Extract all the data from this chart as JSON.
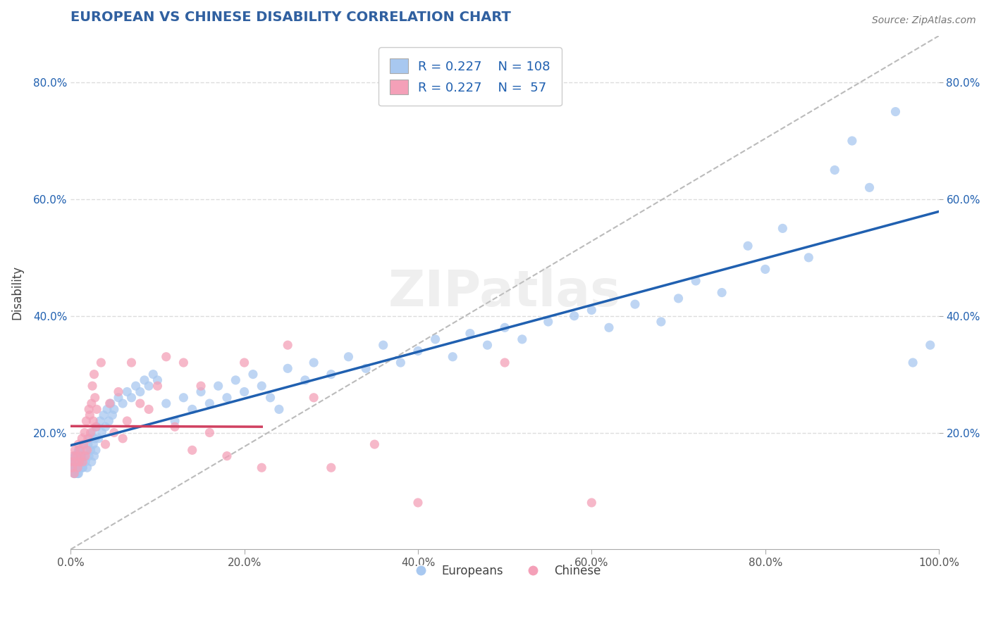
{
  "title": "EUROPEAN VS CHINESE DISABILITY CORRELATION CHART",
  "source": "Source: ZipAtlas.com",
  "ylabel": "Disability",
  "xlabel": "",
  "xlim": [
    0.0,
    1.0
  ],
  "ylim": [
    0.0,
    0.88
  ],
  "xtick_labels": [
    "0.0%",
    "20.0%",
    "40.0%",
    "60.0%",
    "80.0%",
    "100.0%"
  ],
  "xtick_vals": [
    0.0,
    0.2,
    0.4,
    0.6,
    0.8,
    1.0
  ],
  "ytick_labels": [
    "20.0%",
    "40.0%",
    "60.0%",
    "80.0%"
  ],
  "ytick_vals": [
    0.2,
    0.4,
    0.6,
    0.8
  ],
  "R_european": 0.227,
  "N_european": 108,
  "R_chinese": 0.227,
  "N_chinese": 57,
  "blue_scatter": "#a8c8f0",
  "pink_scatter": "#f4a0b8",
  "blue_line_color": "#2060b0",
  "pink_line_color": "#d04060",
  "diag_color": "#bbbbbb",
  "grid_color": "#dddddd",
  "title_color": "#3060a0",
  "legend_text_color": "#2060b0",
  "background_color": "#ffffff",
  "europeans_scatter_x": [
    0.003,
    0.004,
    0.005,
    0.006,
    0.007,
    0.008,
    0.009,
    0.01,
    0.011,
    0.012,
    0.013,
    0.014,
    0.015,
    0.016,
    0.017,
    0.018,
    0.019,
    0.02,
    0.021,
    0.022,
    0.023,
    0.024,
    0.025,
    0.026,
    0.027,
    0.028,
    0.029,
    0.03,
    0.032,
    0.034,
    0.036,
    0.038,
    0.04,
    0.042,
    0.044,
    0.046,
    0.048,
    0.05,
    0.055,
    0.06,
    0.065,
    0.07,
    0.075,
    0.08,
    0.085,
    0.09,
    0.095,
    0.1,
    0.11,
    0.12,
    0.13,
    0.14,
    0.15,
    0.16,
    0.17,
    0.18,
    0.19,
    0.2,
    0.21,
    0.22,
    0.23,
    0.24,
    0.25,
    0.27,
    0.28,
    0.3,
    0.32,
    0.34,
    0.36,
    0.38,
    0.4,
    0.42,
    0.44,
    0.46,
    0.48,
    0.5,
    0.52,
    0.55,
    0.58,
    0.6,
    0.62,
    0.65,
    0.68,
    0.7,
    0.72,
    0.75,
    0.78,
    0.8,
    0.82,
    0.85,
    0.88,
    0.9,
    0.92,
    0.95,
    0.97,
    0.99,
    0.002,
    0.003,
    0.004,
    0.005,
    0.006,
    0.007,
    0.008,
    0.009,
    0.01,
    0.011,
    0.012,
    0.013
  ],
  "europeans_scatter_y": [
    0.14,
    0.15,
    0.13,
    0.16,
    0.14,
    0.15,
    0.13,
    0.17,
    0.14,
    0.16,
    0.15,
    0.14,
    0.18,
    0.16,
    0.15,
    0.17,
    0.14,
    0.18,
    0.16,
    0.19,
    0.17,
    0.15,
    0.2,
    0.18,
    0.16,
    0.19,
    0.17,
    0.21,
    0.19,
    0.22,
    0.2,
    0.23,
    0.21,
    0.24,
    0.22,
    0.25,
    0.23,
    0.24,
    0.26,
    0.25,
    0.27,
    0.26,
    0.28,
    0.27,
    0.29,
    0.28,
    0.3,
    0.29,
    0.25,
    0.22,
    0.26,
    0.24,
    0.27,
    0.25,
    0.28,
    0.26,
    0.29,
    0.27,
    0.3,
    0.28,
    0.26,
    0.24,
    0.31,
    0.29,
    0.32,
    0.3,
    0.33,
    0.31,
    0.35,
    0.32,
    0.34,
    0.36,
    0.33,
    0.37,
    0.35,
    0.38,
    0.36,
    0.39,
    0.4,
    0.41,
    0.38,
    0.42,
    0.39,
    0.43,
    0.46,
    0.44,
    0.52,
    0.48,
    0.55,
    0.5,
    0.65,
    0.7,
    0.62,
    0.75,
    0.32,
    0.35,
    0.14,
    0.15,
    0.13,
    0.16,
    0.14,
    0.15,
    0.13,
    0.17,
    0.14,
    0.16,
    0.15,
    0.14
  ],
  "chinese_scatter_x": [
    0.001,
    0.002,
    0.003,
    0.004,
    0.005,
    0.006,
    0.007,
    0.008,
    0.009,
    0.01,
    0.011,
    0.012,
    0.013,
    0.014,
    0.015,
    0.016,
    0.017,
    0.018,
    0.019,
    0.02,
    0.021,
    0.022,
    0.023,
    0.024,
    0.025,
    0.026,
    0.027,
    0.028,
    0.029,
    0.03,
    0.035,
    0.04,
    0.045,
    0.05,
    0.055,
    0.06,
    0.065,
    0.07,
    0.08,
    0.09,
    0.1,
    0.11,
    0.12,
    0.13,
    0.14,
    0.15,
    0.16,
    0.18,
    0.2,
    0.22,
    0.25,
    0.28,
    0.3,
    0.35,
    0.4,
    0.5,
    0.6
  ],
  "chinese_scatter_y": [
    0.15,
    0.14,
    0.16,
    0.13,
    0.17,
    0.15,
    0.16,
    0.14,
    0.18,
    0.15,
    0.17,
    0.16,
    0.19,
    0.15,
    0.18,
    0.2,
    0.16,
    0.22,
    0.17,
    0.19,
    0.24,
    0.23,
    0.2,
    0.25,
    0.28,
    0.22,
    0.3,
    0.26,
    0.21,
    0.24,
    0.32,
    0.18,
    0.25,
    0.2,
    0.27,
    0.19,
    0.22,
    0.32,
    0.25,
    0.24,
    0.28,
    0.33,
    0.21,
    0.32,
    0.17,
    0.28,
    0.2,
    0.16,
    0.32,
    0.14,
    0.35,
    0.26,
    0.14,
    0.18,
    0.08,
    0.32,
    0.08
  ]
}
